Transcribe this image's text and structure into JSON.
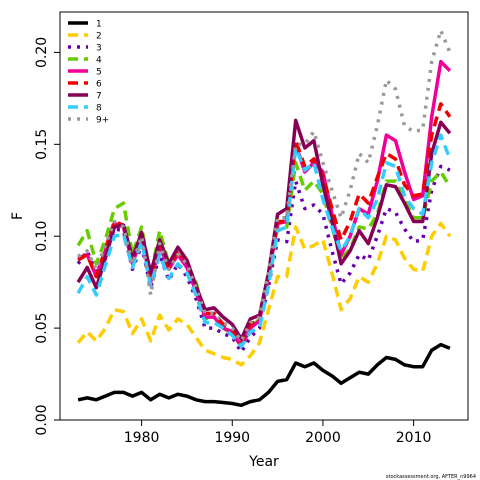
{
  "chart_data": {
    "type": "line",
    "x_label": "Year",
    "y_label": "F",
    "credit": "stockassessment.org, AFTER_n9964",
    "legend": "topleft",
    "xlim": [
      1971,
      2016
    ],
    "xticks": [
      1980,
      1990,
      2000,
      2010
    ],
    "ylim": [
      0,
      0.222
    ],
    "yticks": [
      {
        "value": 0,
        "label": "0.00"
      },
      0.05,
      {
        "value": 0.1,
        "label": "0.10"
      },
      0.15,
      {
        "value": 0.2,
        "label": "0.20"
      }
    ],
    "x": [
      1973,
      1974,
      1975,
      1976,
      1977,
      1978,
      1979,
      1980,
      1981,
      1982,
      1983,
      1984,
      1985,
      1986,
      1987,
      1988,
      1989,
      1990,
      1991,
      1992,
      1993,
      1994,
      1995,
      1996,
      1997,
      1998,
      1999,
      2000,
      2001,
      2002,
      2003,
      2004,
      2005,
      2006,
      2007,
      2008,
      2009,
      2010,
      2011,
      2012,
      2013,
      2014
    ],
    "series": [
      {
        "name": "1",
        "color": "#000000",
        "dash": "solid",
        "values": [
          0.011,
          0.012,
          0.011,
          0.013,
          0.015,
          0.015,
          0.013,
          0.015,
          0.011,
          0.014,
          0.012,
          0.014,
          0.013,
          0.011,
          0.01,
          0.01,
          0.0095,
          0.009,
          0.008,
          0.01,
          0.011,
          0.015,
          0.021,
          0.022,
          0.031,
          0.029,
          0.031,
          0.027,
          0.024,
          0.02,
          0.023,
          0.026,
          0.025,
          0.03,
          0.034,
          0.033,
          0.03,
          0.029,
          0.029,
          0.038,
          0.041,
          0.039
        ]
      },
      {
        "name": "2",
        "color": "#ffcc00",
        "dash": "dashed",
        "values": [
          0.042,
          0.048,
          0.043,
          0.05,
          0.06,
          0.059,
          0.047,
          0.055,
          0.043,
          0.057,
          0.049,
          0.055,
          0.052,
          0.045,
          0.038,
          0.036,
          0.034,
          0.033,
          0.03,
          0.035,
          0.042,
          0.06,
          0.078,
          0.078,
          0.105,
          0.093,
          0.095,
          0.098,
          0.08,
          0.06,
          0.066,
          0.078,
          0.075,
          0.085,
          0.1,
          0.098,
          0.088,
          0.082,
          0.081,
          0.1,
          0.107,
          0.1
        ]
      },
      {
        "name": "3",
        "color": "#6600aa",
        "dash": "dotted",
        "values": [
          0.085,
          0.092,
          0.08,
          0.09,
          0.104,
          0.103,
          0.082,
          0.095,
          0.072,
          0.09,
          0.076,
          0.085,
          0.078,
          0.066,
          0.05,
          0.05,
          0.047,
          0.045,
          0.037,
          0.045,
          0.05,
          0.073,
          0.098,
          0.097,
          0.13,
          0.115,
          0.117,
          0.112,
          0.092,
          0.074,
          0.08,
          0.09,
          0.087,
          0.1,
          0.115,
          0.113,
          0.104,
          0.097,
          0.098,
          0.125,
          0.138,
          0.136
        ]
      },
      {
        "name": "4",
        "color": "#66cc00",
        "dash": "dashed",
        "values": [
          0.095,
          0.103,
          0.085,
          0.098,
          0.115,
          0.118,
          0.09,
          0.105,
          0.078,
          0.103,
          0.085,
          0.092,
          0.085,
          0.075,
          0.055,
          0.056,
          0.05,
          0.047,
          0.04,
          0.05,
          0.055,
          0.078,
          0.105,
          0.105,
          0.14,
          0.125,
          0.13,
          0.123,
          0.105,
          0.088,
          0.093,
          0.105,
          0.104,
          0.112,
          0.13,
          0.13,
          0.12,
          0.11,
          0.11,
          0.13,
          0.135,
          0.127
        ]
      },
      {
        "name": "5",
        "color": "#ee0099",
        "dash": "solid",
        "values": [
          0.088,
          0.09,
          0.078,
          0.092,
          0.107,
          0.105,
          0.085,
          0.1,
          0.075,
          0.095,
          0.082,
          0.09,
          0.083,
          0.07,
          0.056,
          0.056,
          0.05,
          0.048,
          0.04,
          0.05,
          0.054,
          0.078,
          0.107,
          0.108,
          0.15,
          0.135,
          0.14,
          0.135,
          0.112,
          0.09,
          0.1,
          0.115,
          0.112,
          0.13,
          0.155,
          0.152,
          0.135,
          0.12,
          0.122,
          0.165,
          0.195,
          0.19
        ]
      },
      {
        "name": "6",
        "color": "#ee0000",
        "dash": "dashed",
        "values": [
          0.087,
          0.09,
          0.078,
          0.093,
          0.108,
          0.106,
          0.087,
          0.102,
          0.077,
          0.097,
          0.083,
          0.092,
          0.086,
          0.073,
          0.058,
          0.058,
          0.052,
          0.049,
          0.042,
          0.052,
          0.055,
          0.08,
          0.108,
          0.108,
          0.152,
          0.138,
          0.142,
          0.133,
          0.115,
          0.098,
          0.108,
          0.123,
          0.118,
          0.132,
          0.145,
          0.142,
          0.128,
          0.122,
          0.123,
          0.155,
          0.172,
          0.165
        ]
      },
      {
        "name": "7",
        "color": "#880055",
        "dash": "solid",
        "values": [
          0.075,
          0.083,
          0.072,
          0.088,
          0.105,
          0.106,
          0.088,
          0.102,
          0.08,
          0.098,
          0.085,
          0.094,
          0.087,
          0.073,
          0.06,
          0.061,
          0.056,
          0.052,
          0.044,
          0.055,
          0.057,
          0.08,
          0.112,
          0.115,
          0.163,
          0.148,
          0.152,
          0.128,
          0.108,
          0.085,
          0.092,
          0.103,
          0.096,
          0.11,
          0.128,
          0.127,
          0.118,
          0.108,
          0.108,
          0.145,
          0.162,
          0.156
        ]
      },
      {
        "name": "8",
        "color": "#33ccff",
        "dash": "dashed",
        "values": [
          0.069,
          0.078,
          0.068,
          0.084,
          0.1,
          0.101,
          0.083,
          0.097,
          0.073,
          0.09,
          0.077,
          0.085,
          0.08,
          0.068,
          0.053,
          0.053,
          0.05,
          0.046,
          0.04,
          0.048,
          0.05,
          0.073,
          0.103,
          0.105,
          0.148,
          0.136,
          0.14,
          0.12,
          0.105,
          0.092,
          0.1,
          0.115,
          0.11,
          0.12,
          0.14,
          0.138,
          0.122,
          0.115,
          0.112,
          0.14,
          0.155,
          0.142
        ]
      },
      {
        "name": "9+",
        "color": "#999999",
        "dash": "dotted",
        "values": [
          0.089,
          0.092,
          0.082,
          0.095,
          0.108,
          0.105,
          0.085,
          0.1,
          0.068,
          0.096,
          0.082,
          0.09,
          0.085,
          0.072,
          0.058,
          0.058,
          0.053,
          0.05,
          0.043,
          0.053,
          0.056,
          0.08,
          0.11,
          0.11,
          0.15,
          0.15,
          0.157,
          0.14,
          0.125,
          0.11,
          0.125,
          0.145,
          0.14,
          0.16,
          0.185,
          0.18,
          0.16,
          0.157,
          0.158,
          0.195,
          0.212,
          0.2
        ]
      }
    ]
  }
}
